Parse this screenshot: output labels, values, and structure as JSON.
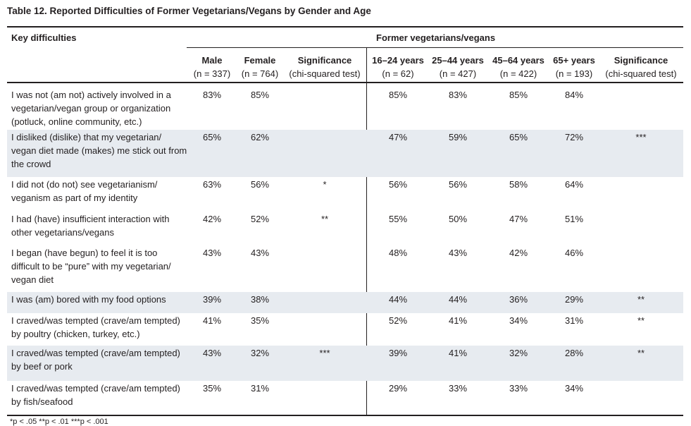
{
  "title": "Table 12. Reported Difficulties of Former Vegetarians/Vegans by Gender and Age",
  "header": {
    "row_label": "Key difficulties",
    "group_label": "Former vegetarians/vegans",
    "columns": [
      {
        "label": "Male",
        "n": "(n = 337)"
      },
      {
        "label": "Female",
        "n": "(n = 764)"
      },
      {
        "label": "Significance",
        "n": "(chi-squared test)"
      },
      {
        "label": "16–24 years",
        "n": "(n = 62)"
      },
      {
        "label": "25–44 years",
        "n": "(n = 427)"
      },
      {
        "label": "45–64 years",
        "n": "(n = 422)"
      },
      {
        "label": "65+ years",
        "n": "(n = 193)"
      },
      {
        "label": "Significance",
        "n": "(chi-squared test)"
      }
    ]
  },
  "rows": [
    {
      "label": "I was not (am not) actively involved in a vegetarian/vegan group or organization (potluck, online community, etc.)",
      "values": [
        "83%",
        "85%",
        "",
        "85%",
        "83%",
        "85%",
        "84%",
        ""
      ]
    },
    {
      "label": "I disliked (dislike) that my vegetarian/ vegan diet made (makes) me stick out from the crowd",
      "values": [
        "65%",
        "62%",
        "",
        "47%",
        "59%",
        "65%",
        "72%",
        "***"
      ]
    },
    {
      "label": "I did not (do not) see vegetarianism/ veganism as part of my identity",
      "values": [
        "63%",
        "56%",
        "*",
        "56%",
        "56%",
        "58%",
        "64%",
        ""
      ]
    },
    {
      "label": "I had (have) insufficient interaction with other vegetarians/vegans",
      "values": [
        "42%",
        "52%",
        "**",
        "55%",
        "50%",
        "47%",
        "51%",
        ""
      ]
    },
    {
      "label": "I began (have begun) to feel it is too difficult to be “pure” with my vegetarian/ vegan diet",
      "values": [
        "43%",
        "43%",
        "",
        "48%",
        "43%",
        "42%",
        "46%",
        ""
      ]
    },
    {
      "label": "I was (am) bored with my food options",
      "values": [
        "39%",
        "38%",
        "",
        "44%",
        "44%",
        "36%",
        "29%",
        "**"
      ]
    },
    {
      "label": "I craved/was tempted (crave/am tempted) by poultry (chicken, turkey, etc.)",
      "values": [
        "41%",
        "35%",
        "",
        "52%",
        "41%",
        "34%",
        "31%",
        "**"
      ]
    },
    {
      "label": "I craved/was tempted (crave/am tempted) by beef or pork",
      "values": [
        "43%",
        "32%",
        "***",
        "39%",
        "41%",
        "32%",
        "28%",
        "**"
      ]
    },
    {
      "label": "I craved/was tempted (crave/am tempted) by fish/seafood",
      "values": [
        "35%",
        "31%",
        "",
        "29%",
        "33%",
        "33%",
        "34%",
        ""
      ]
    }
  ],
  "footnote": "*p < .05 **p < .01 ***p < .001",
  "colors": {
    "shade": "#e7ebf0",
    "rule": "#231f20"
  }
}
